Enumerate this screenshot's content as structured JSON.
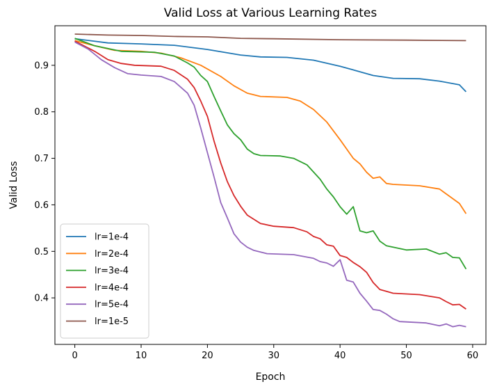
{
  "chart_data": {
    "type": "line",
    "title": "Valid Loss at Various Learning Rates",
    "xlabel": "Epoch",
    "ylabel": "Valid Loss",
    "xlim": [
      -3,
      62
    ],
    "ylim": [
      0.3,
      0.985
    ],
    "xticks": [
      0,
      10,
      20,
      30,
      40,
      50,
      60
    ],
    "yticks": [
      0.4,
      0.5,
      0.6,
      0.7,
      0.8,
      0.9
    ],
    "ytick_labels": [
      "0.4",
      "0.5",
      "0.6",
      "0.7",
      "0.8",
      "0.9"
    ],
    "grid": false,
    "legend_position": "lower-left",
    "series": [
      {
        "name": "lr=1e-4",
        "color": "#1f77b4",
        "points": [
          [
            0,
            0.957
          ],
          [
            5,
            0.948
          ],
          [
            10,
            0.946
          ],
          [
            15,
            0.943
          ],
          [
            20,
            0.934
          ],
          [
            25,
            0.922
          ],
          [
            28,
            0.918
          ],
          [
            32,
            0.917
          ],
          [
            36,
            0.911
          ],
          [
            40,
            0.898
          ],
          [
            45,
            0.878
          ],
          [
            48,
            0.872
          ],
          [
            52,
            0.871
          ],
          [
            55,
            0.866
          ],
          [
            58,
            0.858
          ],
          [
            59,
            0.843
          ]
        ]
      },
      {
        "name": "lr=2e-4",
        "color": "#ff7f0e",
        "points": [
          [
            0,
            0.953
          ],
          [
            3,
            0.942
          ],
          [
            6,
            0.932
          ],
          [
            10,
            0.93
          ],
          [
            13,
            0.926
          ],
          [
            16,
            0.916
          ],
          [
            19,
            0.9
          ],
          [
            22,
            0.876
          ],
          [
            24,
            0.856
          ],
          [
            26,
            0.84
          ],
          [
            28,
            0.833
          ],
          [
            32,
            0.831
          ],
          [
            34,
            0.823
          ],
          [
            36,
            0.805
          ],
          [
            38,
            0.778
          ],
          [
            40,
            0.74
          ],
          [
            42,
            0.7
          ],
          [
            43,
            0.688
          ],
          [
            44,
            0.67
          ],
          [
            45,
            0.657
          ],
          [
            46,
            0.66
          ],
          [
            47,
            0.646
          ],
          [
            48,
            0.644
          ],
          [
            52,
            0.641
          ],
          [
            55,
            0.634
          ],
          [
            58,
            0.603
          ],
          [
            59,
            0.581
          ]
        ]
      },
      {
        "name": "lr=3e-4",
        "color": "#2ca02c",
        "points": [
          [
            0,
            0.958
          ],
          [
            3,
            0.942
          ],
          [
            5,
            0.936
          ],
          [
            7,
            0.93
          ],
          [
            12,
            0.928
          ],
          [
            15,
            0.92
          ],
          [
            17,
            0.905
          ],
          [
            18,
            0.896
          ],
          [
            19,
            0.878
          ],
          [
            20,
            0.865
          ],
          [
            21,
            0.833
          ],
          [
            22,
            0.802
          ],
          [
            23,
            0.772
          ],
          [
            24,
            0.753
          ],
          [
            25,
            0.74
          ],
          [
            26,
            0.72
          ],
          [
            27,
            0.71
          ],
          [
            28,
            0.706
          ],
          [
            31,
            0.705
          ],
          [
            33,
            0.7
          ],
          [
            35,
            0.686
          ],
          [
            37,
            0.655
          ],
          [
            38,
            0.634
          ],
          [
            39,
            0.617
          ],
          [
            40,
            0.596
          ],
          [
            41,
            0.58
          ],
          [
            42,
            0.596
          ],
          [
            43,
            0.544
          ],
          [
            44,
            0.54
          ],
          [
            45,
            0.544
          ],
          [
            46,
            0.522
          ],
          [
            47,
            0.512
          ],
          [
            50,
            0.503
          ],
          [
            53,
            0.505
          ],
          [
            55,
            0.494
          ],
          [
            56,
            0.497
          ],
          [
            57,
            0.487
          ],
          [
            58,
            0.486
          ],
          [
            59,
            0.462
          ]
        ]
      },
      {
        "name": "lr=4e-4",
        "color": "#d62728",
        "points": [
          [
            0,
            0.952
          ],
          [
            3,
            0.93
          ],
          [
            5,
            0.912
          ],
          [
            7,
            0.904
          ],
          [
            9,
            0.9
          ],
          [
            13,
            0.898
          ],
          [
            15,
            0.889
          ],
          [
            17,
            0.87
          ],
          [
            18,
            0.852
          ],
          [
            19,
            0.823
          ],
          [
            20,
            0.79
          ],
          [
            21,
            0.737
          ],
          [
            22,
            0.69
          ],
          [
            23,
            0.65
          ],
          [
            24,
            0.62
          ],
          [
            25,
            0.597
          ],
          [
            26,
            0.578
          ],
          [
            28,
            0.56
          ],
          [
            30,
            0.554
          ],
          [
            33,
            0.551
          ],
          [
            35,
            0.542
          ],
          [
            36,
            0.532
          ],
          [
            37,
            0.527
          ],
          [
            38,
            0.514
          ],
          [
            39,
            0.511
          ],
          [
            40,
            0.491
          ],
          [
            41,
            0.487
          ],
          [
            42,
            0.476
          ],
          [
            43,
            0.467
          ],
          [
            44,
            0.455
          ],
          [
            45,
            0.433
          ],
          [
            46,
            0.418
          ],
          [
            47,
            0.414
          ],
          [
            48,
            0.41
          ],
          [
            52,
            0.407
          ],
          [
            55,
            0.4
          ],
          [
            56,
            0.392
          ],
          [
            57,
            0.385
          ],
          [
            58,
            0.386
          ],
          [
            59,
            0.376
          ]
        ]
      },
      {
        "name": "lr=5e-4",
        "color": "#9467bd",
        "points": [
          [
            0,
            0.95
          ],
          [
            2,
            0.935
          ],
          [
            4,
            0.912
          ],
          [
            6,
            0.895
          ],
          [
            8,
            0.882
          ],
          [
            10,
            0.879
          ],
          [
            13,
            0.876
          ],
          [
            15,
            0.865
          ],
          [
            17,
            0.84
          ],
          [
            18,
            0.814
          ],
          [
            19,
            0.765
          ],
          [
            20,
            0.712
          ],
          [
            21,
            0.66
          ],
          [
            22,
            0.605
          ],
          [
            23,
            0.572
          ],
          [
            24,
            0.538
          ],
          [
            25,
            0.52
          ],
          [
            26,
            0.509
          ],
          [
            27,
            0.502
          ],
          [
            29,
            0.495
          ],
          [
            33,
            0.493
          ],
          [
            36,
            0.485
          ],
          [
            37,
            0.478
          ],
          [
            38,
            0.475
          ],
          [
            39,
            0.468
          ],
          [
            40,
            0.482
          ],
          [
            41,
            0.438
          ],
          [
            42,
            0.434
          ],
          [
            43,
            0.41
          ],
          [
            44,
            0.393
          ],
          [
            45,
            0.375
          ],
          [
            46,
            0.373
          ],
          [
            47,
            0.365
          ],
          [
            48,
            0.355
          ],
          [
            49,
            0.349
          ],
          [
            53,
            0.346
          ],
          [
            55,
            0.34
          ],
          [
            56,
            0.344
          ],
          [
            57,
            0.338
          ],
          [
            58,
            0.341
          ],
          [
            59,
            0.338
          ]
        ]
      },
      {
        "name": "lr=1e-5",
        "color": "#8c564b",
        "points": [
          [
            0,
            0.967
          ],
          [
            5,
            0.965
          ],
          [
            10,
            0.964
          ],
          [
            15,
            0.962
          ],
          [
            20,
            0.961
          ],
          [
            25,
            0.958
          ],
          [
            30,
            0.957
          ],
          [
            40,
            0.955
          ],
          [
            50,
            0.954
          ],
          [
            59,
            0.953
          ]
        ]
      }
    ]
  }
}
